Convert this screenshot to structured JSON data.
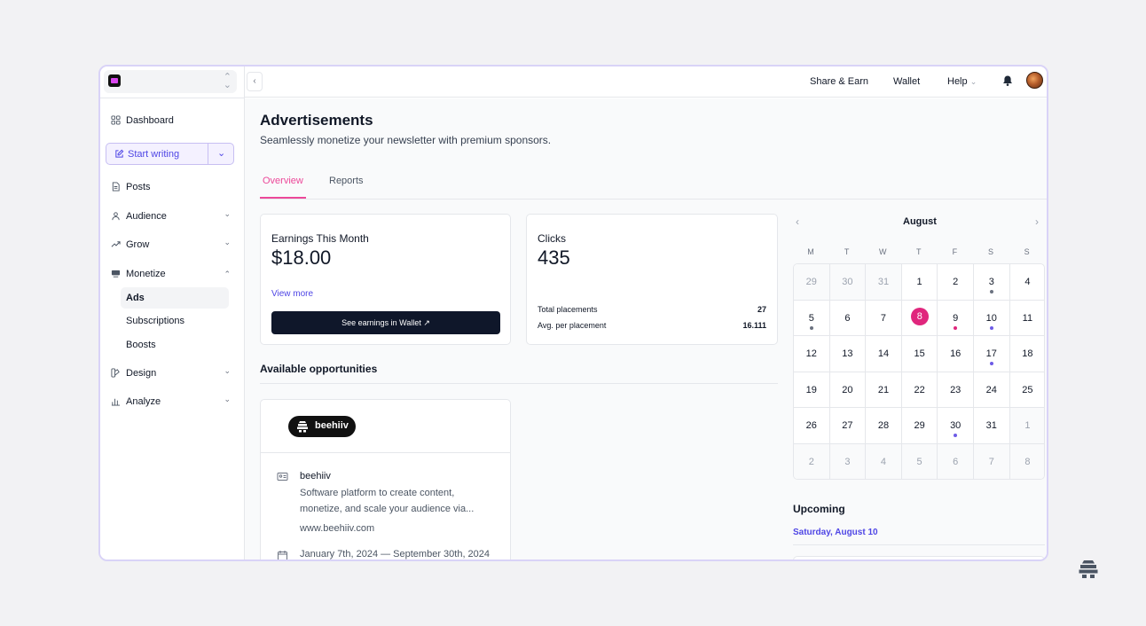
{
  "sidebar": {
    "nav": {
      "dashboard": "Dashboard",
      "start_writing": "Start writing",
      "posts": "Posts",
      "audience": "Audience",
      "grow": "Grow",
      "monetize": "Monetize",
      "design": "Design",
      "analyze": "Analyze"
    },
    "monetize_sub": {
      "ads": "Ads",
      "subscriptions": "Subscriptions",
      "boosts": "Boosts"
    }
  },
  "topbar": {
    "share_earn": "Share & Earn",
    "wallet": "Wallet",
    "help": "Help"
  },
  "page": {
    "title": "Advertisements",
    "subtitle": "Seamlessly monetize your newsletter with premium sponsors."
  },
  "tabs": {
    "overview": "Overview",
    "reports": "Reports"
  },
  "earnings": {
    "label": "Earnings This Month",
    "value": "$18.00",
    "view_more": "View more",
    "wallet_button": "See earnings in Wallet ↗"
  },
  "clicks": {
    "label": "Clicks",
    "value": "435",
    "total_placements_label": "Total placements",
    "total_placements_value": "27",
    "avg_label": "Avg. per placement",
    "avg_value": "16.111"
  },
  "opportunities": {
    "title": "Available opportunities",
    "brand_pill": "beehiiv",
    "name": "beehiiv",
    "description": "Software platform to create content, monetize, and scale your audience via...",
    "url": "www.beehiiv.com",
    "dates": "January 7th, 2024 — September 30th, 2024"
  },
  "calendar": {
    "month": "August",
    "weekdays": [
      "M",
      "T",
      "W",
      "T",
      "F",
      "S",
      "S"
    ],
    "today": "8",
    "days": [
      {
        "d": "29",
        "muted": true
      },
      {
        "d": "30",
        "muted": true
      },
      {
        "d": "31",
        "muted": true
      },
      {
        "d": "1"
      },
      {
        "d": "2"
      },
      {
        "d": "3",
        "dot": "#6b7280"
      },
      {
        "d": "4"
      },
      {
        "d": "5",
        "dot": "#6b7280"
      },
      {
        "d": "6"
      },
      {
        "d": "7"
      },
      {
        "d": "8"
      },
      {
        "d": "9",
        "dot": "#e0267d"
      },
      {
        "d": "10",
        "dot": "#6d5be6"
      },
      {
        "d": "11"
      },
      {
        "d": "12"
      },
      {
        "d": "13"
      },
      {
        "d": "14"
      },
      {
        "d": "15"
      },
      {
        "d": "16"
      },
      {
        "d": "17",
        "dot": "#6d5be6"
      },
      {
        "d": "18"
      },
      {
        "d": "19"
      },
      {
        "d": "20"
      },
      {
        "d": "21"
      },
      {
        "d": "22"
      },
      {
        "d": "23"
      },
      {
        "d": "24"
      },
      {
        "d": "25"
      },
      {
        "d": "26"
      },
      {
        "d": "27"
      },
      {
        "d": "28"
      },
      {
        "d": "29"
      },
      {
        "d": "30",
        "dot": "#6d5be6"
      },
      {
        "d": "31"
      },
      {
        "d": "1",
        "muted": true
      },
      {
        "d": "2",
        "muted": true
      },
      {
        "d": "3",
        "muted": true
      },
      {
        "d": "4",
        "muted": true
      },
      {
        "d": "5",
        "muted": true
      },
      {
        "d": "6",
        "muted": true
      },
      {
        "d": "7",
        "muted": true
      },
      {
        "d": "8",
        "muted": true
      }
    ]
  },
  "upcoming": {
    "title": "Upcoming",
    "date": "Saturday, August 10"
  },
  "colors": {
    "accent": "#4f46e5",
    "pink": "#ec4899",
    "today": "#e0267d"
  }
}
